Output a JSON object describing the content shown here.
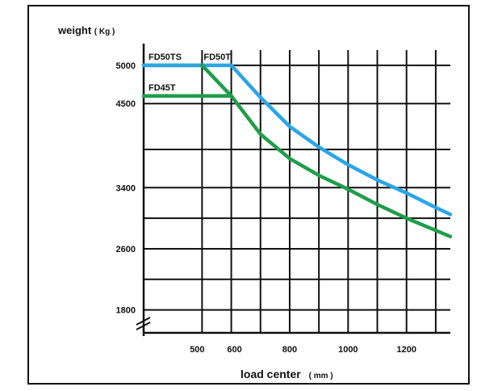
{
  "chart_data": {
    "type": "line",
    "title": "",
    "ylabel": "weight",
    "ylabel_unit": "( Kg )",
    "xlabel": "load center",
    "xlabel_unit": "( mm )",
    "xlim": [
      300,
      1350
    ],
    "ylim": [
      1500,
      5200
    ],
    "x_ticks": [
      500,
      600,
      800,
      1000,
      1200
    ],
    "x_tick_labels": [
      "500",
      "600",
      "800",
      "1000",
      "1200"
    ],
    "y_ticks": [
      1800,
      2600,
      3400,
      4500,
      5000
    ],
    "y_tick_labels": [
      "1800",
      "2600",
      "3400",
      "4500",
      "5000"
    ],
    "grid": true,
    "axis_break": true,
    "series": [
      {
        "name": "FD50TS",
        "color": "#1f9e4a",
        "x": [
          300,
          500
        ],
        "y": [
          5000,
          5000
        ]
      },
      {
        "name": "FD50T",
        "color": "#2aa6e8",
        "x": [
          300,
          600,
          700,
          800,
          900,
          1000,
          1100,
          1200,
          1300,
          1350
        ],
        "y": [
          5000,
          5000,
          4580,
          4200,
          3930,
          3700,
          3500,
          3330,
          3140,
          3050
        ]
      },
      {
        "name": "FD45T",
        "color": "#1f9e4a",
        "x": [
          300,
          600,
          700,
          800,
          900,
          1000,
          1100,
          1200,
          1300,
          1350
        ],
        "y": [
          4600,
          4600,
          4100,
          3780,
          3560,
          3380,
          3180,
          3000,
          2840,
          2760
        ]
      },
      {
        "name": "",
        "color": "#1f9e4a",
        "x": [
          500,
          600
        ],
        "y": [
          5000,
          4600
        ]
      }
    ]
  }
}
